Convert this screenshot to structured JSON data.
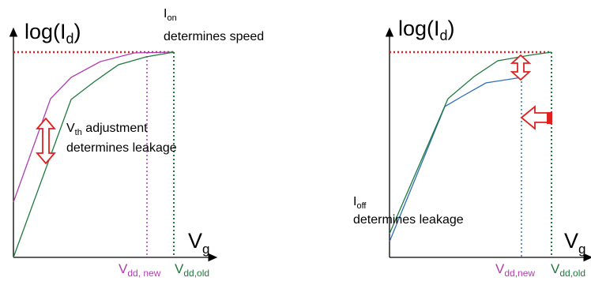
{
  "colors": {
    "axis": "#000000",
    "dotted_level": "#e02020",
    "green": "#1e7a3c",
    "magenta": "#b03cb0",
    "blue": "#2e6eb5",
    "arrow": "#e02020"
  },
  "left": {
    "ylabel_main": "log(I",
    "ylabel_sub": "d",
    "ylabel_close": ")",
    "ion_main": "I",
    "ion_sub": "on",
    "ion_caption": "determines speed",
    "vth_main": "V",
    "vth_sub": "th",
    "vth_rest": " adjustment",
    "vth_caption": "determines leakage",
    "xlabel_main": "V",
    "xlabel_sub": "g",
    "vdd_new_main": "V",
    "vdd_new_sub": "dd, new",
    "vdd_old_main": "V",
    "vdd_old_sub": "dd,old"
  },
  "right": {
    "ylabel_main": "log(I",
    "ylabel_sub": "d",
    "ylabel_close": ")",
    "ioff_main": "I",
    "ioff_sub": "off",
    "ioff_caption": "determines leakage",
    "xlabel_main": "V",
    "xlabel_sub": "g",
    "vdd_new_main": "V",
    "vdd_new_sub": "dd,new",
    "vdd_old_main": "V",
    "vdd_old_sub": "dd,old"
  }
}
